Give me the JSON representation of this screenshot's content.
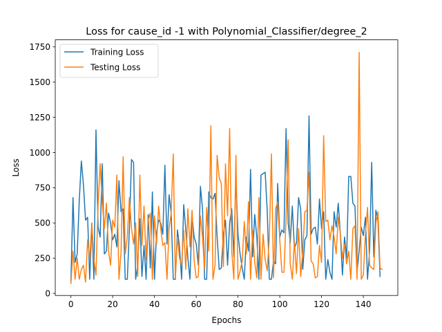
{
  "chart_data": {
    "type": "line",
    "title": "Loss for cause_id -1 with Polynomial_Classifier/degree_2",
    "xlabel": "Epochs",
    "ylabel": "Loss",
    "xlim": [
      -7.5,
      156.5
    ],
    "ylim": [
      -15,
      1800
    ],
    "xticks": [
      0,
      20,
      40,
      60,
      80,
      100,
      120,
      140
    ],
    "yticks": [
      0,
      250,
      500,
      750,
      1000,
      1250,
      1500,
      1750
    ],
    "grid": false,
    "legend_position": "upper-left",
    "series": [
      {
        "name": "Training Loss",
        "color": "#1f77b4",
        "values": [
          90,
          680,
          220,
          280,
          660,
          940,
          770,
          520,
          540,
          100,
          500,
          100,
          1160,
          470,
          400,
          920,
          280,
          300,
          570,
          500,
          380,
          420,
          330,
          800,
          580,
          600,
          100,
          100,
          460,
          950,
          930,
          100,
          200,
          530,
          120,
          340,
          100,
          560,
          180,
          720,
          100,
          430,
          520,
          500,
          420,
          910,
          350,
          700,
          570,
          100,
          100,
          450,
          330,
          100,
          630,
          450,
          250,
          100,
          550,
          400,
          350,
          200,
          760,
          600,
          100,
          100,
          720,
          680,
          670,
          710,
          400,
          170,
          180,
          420,
          520,
          200,
          500,
          600,
          260,
          810,
          420,
          280,
          180,
          100,
          400,
          300,
          880,
          260,
          560,
          400,
          100,
          840,
          850,
          860,
          580,
          100,
          100,
          230,
          210,
          780,
          400,
          450,
          430,
          1170,
          500,
          360,
          620,
          320,
          360,
          680,
          600,
          170,
          380,
          410,
          1260,
          420,
          460,
          470,
          350,
          670,
          460,
          580,
          100,
          240,
          150,
          100,
          580,
          470,
          640,
          420,
          130,
          400,
          250,
          830,
          830,
          640,
          620,
          160,
          300,
          470,
          410,
          540,
          100,
          300,
          930,
          260,
          590,
          520,
          120
        ]
      },
      {
        "name": "Testing Loss",
        "color": "#ff7f0e",
        "values": [
          70,
          300,
          100,
          250,
          100,
          170,
          200,
          80,
          380,
          240,
          500,
          240,
          130,
          630,
          920,
          650,
          460,
          640,
          300,
          200,
          520,
          470,
          840,
          100,
          290,
          970,
          280,
          400,
          680,
          460,
          350,
          500,
          120,
          840,
          340,
          620,
          240,
          520,
          570,
          100,
          550,
          350,
          620,
          460,
          340,
          360,
          100,
          460,
          570,
          990,
          110,
          400,
          250,
          200,
          450,
          170,
          600,
          330,
          590,
          230,
          110,
          120,
          550,
          400,
          170,
          610,
          300,
          1190,
          100,
          200,
          980,
          820,
          780,
          190,
          920,
          550,
          1170,
          300,
          100,
          980,
          100,
          160,
          230,
          510,
          280,
          650,
          100,
          450,
          220,
          110,
          680,
          100,
          420,
          240,
          160,
          400,
          990,
          110,
          600,
          650,
          380,
          150,
          150,
          530,
          1090,
          210,
          100,
          370,
          140,
          460,
          120,
          300,
          580,
          590,
          860,
          230,
          210,
          110,
          120,
          340,
          220,
          1120,
          510,
          520,
          380,
          480,
          400,
          280,
          540,
          420,
          250,
          350,
          210,
          300,
          100,
          460,
          480,
          100,
          1710,
          100,
          130,
          420,
          610,
          200,
          180,
          170,
          500,
          580,
          180,
          170
        ]
      }
    ]
  }
}
